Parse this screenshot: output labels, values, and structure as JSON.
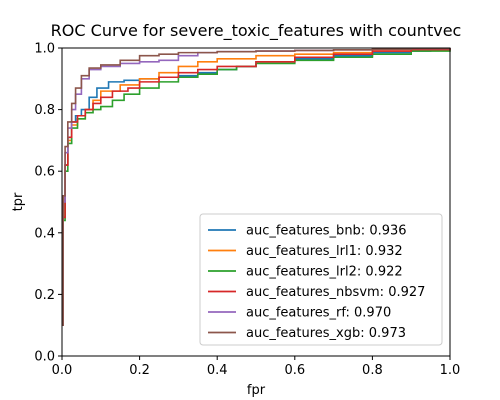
{
  "chart_data": {
    "type": "line",
    "title": "ROC Curve for severe_toxic_features with countvec",
    "xlabel": "fpr",
    "ylabel": "tpr",
    "xlim": [
      0,
      1
    ],
    "ylim": [
      0,
      1
    ],
    "xticks": [
      "0.0",
      "0.2",
      "0.4",
      "0.6",
      "0.8",
      "1.0"
    ],
    "yticks": [
      "0.0",
      "0.2",
      "0.4",
      "0.6",
      "0.8",
      "1.0"
    ],
    "grid": false,
    "legend_position": "lower-right",
    "series": [
      {
        "name": "auc_features_bnb: 0.936",
        "color": "#1f77b4",
        "x": [
          0,
          0.003,
          0.008,
          0.015,
          0.025,
          0.035,
          0.05,
          0.07,
          0.09,
          0.12,
          0.16,
          0.2,
          0.25,
          0.3,
          0.35,
          0.4,
          0.45,
          0.5,
          0.6,
          0.7,
          0.8,
          0.9,
          0.95,
          1.0
        ],
        "y": [
          0.1,
          0.45,
          0.62,
          0.71,
          0.76,
          0.78,
          0.8,
          0.84,
          0.87,
          0.89,
          0.895,
          0.9,
          0.905,
          0.91,
          0.92,
          0.93,
          0.94,
          0.955,
          0.965,
          0.975,
          0.985,
          0.99,
          0.995,
          1.0
        ]
      },
      {
        "name": "auc_features_lrl1: 0.932",
        "color": "#ff7f0e",
        "x": [
          0,
          0.003,
          0.008,
          0.015,
          0.025,
          0.04,
          0.06,
          0.08,
          0.1,
          0.15,
          0.2,
          0.25,
          0.3,
          0.35,
          0.4,
          0.5,
          0.6,
          0.7,
          0.8,
          0.9,
          1.0
        ],
        "y": [
          0.1,
          0.45,
          0.62,
          0.7,
          0.75,
          0.77,
          0.8,
          0.83,
          0.86,
          0.88,
          0.9,
          0.92,
          0.94,
          0.955,
          0.965,
          0.975,
          0.98,
          0.985,
          0.99,
          0.995,
          1.0
        ]
      },
      {
        "name": "auc_features_lrl2: 0.922",
        "color": "#2ca02c",
        "x": [
          0,
          0.003,
          0.008,
          0.015,
          0.025,
          0.04,
          0.06,
          0.08,
          0.1,
          0.13,
          0.16,
          0.2,
          0.25,
          0.3,
          0.35,
          0.4,
          0.45,
          0.5,
          0.6,
          0.7,
          0.8,
          0.9,
          1.0
        ],
        "y": [
          0.1,
          0.44,
          0.6,
          0.69,
          0.74,
          0.77,
          0.79,
          0.8,
          0.81,
          0.83,
          0.85,
          0.87,
          0.89,
          0.905,
          0.915,
          0.93,
          0.94,
          0.95,
          0.96,
          0.97,
          0.98,
          0.99,
          1.0
        ]
      },
      {
        "name": "auc_features_nbsvm: 0.927",
        "color": "#d62728",
        "x": [
          0,
          0.003,
          0.008,
          0.015,
          0.025,
          0.04,
          0.06,
          0.08,
          0.1,
          0.13,
          0.17,
          0.2,
          0.25,
          0.3,
          0.35,
          0.4,
          0.5,
          0.6,
          0.7,
          0.8,
          0.9,
          1.0
        ],
        "y": [
          0.1,
          0.45,
          0.62,
          0.71,
          0.76,
          0.78,
          0.8,
          0.82,
          0.84,
          0.86,
          0.87,
          0.89,
          0.905,
          0.92,
          0.93,
          0.94,
          0.955,
          0.97,
          0.98,
          0.99,
          0.995,
          1.0
        ]
      },
      {
        "name": "auc_features_rf: 0.970",
        "color": "#9467bd",
        "x": [
          0,
          0.003,
          0.008,
          0.015,
          0.025,
          0.035,
          0.05,
          0.07,
          0.1,
          0.15,
          0.2,
          0.25,
          0.3,
          0.35,
          0.4,
          0.5,
          0.6,
          0.7,
          0.8,
          0.9,
          1.0
        ],
        "y": [
          0.1,
          0.5,
          0.66,
          0.74,
          0.8,
          0.85,
          0.9,
          0.93,
          0.94,
          0.95,
          0.955,
          0.96,
          0.975,
          0.985,
          0.988,
          0.99,
          0.992,
          0.994,
          0.996,
          0.998,
          1.0
        ]
      },
      {
        "name": "auc_features_xgb: 0.973",
        "color": "#8c564b",
        "x": [
          0,
          0.003,
          0.008,
          0.015,
          0.025,
          0.035,
          0.05,
          0.07,
          0.1,
          0.15,
          0.2,
          0.25,
          0.3,
          0.4,
          0.5,
          0.6,
          0.7,
          0.8,
          0.9,
          1.0
        ],
        "y": [
          0.1,
          0.52,
          0.68,
          0.76,
          0.82,
          0.87,
          0.91,
          0.935,
          0.945,
          0.96,
          0.975,
          0.98,
          0.985,
          0.988,
          0.99,
          0.992,
          0.994,
          0.996,
          0.998,
          1.0
        ]
      }
    ]
  }
}
